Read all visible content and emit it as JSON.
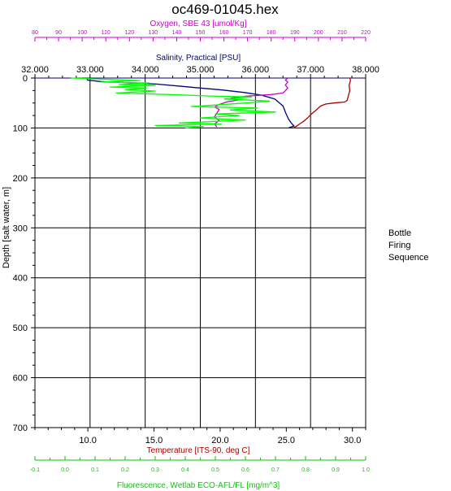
{
  "chart_data": {
    "type": "line",
    "title": "oc469-01045.hex",
    "ylabel": "Depth [salt water, m]",
    "ylim": [
      700,
      0
    ],
    "y_ticks": [
      "0",
      "100",
      "200",
      "300",
      "400",
      "500",
      "600",
      "700"
    ],
    "grid": true,
    "legend_title_lines": [
      "Bottle",
      "Firing",
      "Sequence"
    ],
    "axes": {
      "oxygen": {
        "label": "Oxygen, SBE 43 [umol/Kg]",
        "color": "#cc00cc",
        "range": [
          80,
          220
        ],
        "ticks": [
          "80",
          "90",
          "100",
          "110",
          "120",
          "130",
          "140",
          "150",
          "160",
          "170",
          "180",
          "190",
          "200",
          "210",
          "220"
        ]
      },
      "salinity": {
        "label": "Salinity, Practical [PSU]",
        "color": "#000080",
        "range": [
          32,
          38
        ],
        "ticks": [
          "32.000",
          "33.000",
          "34.000",
          "35.000",
          "36.000",
          "37.000",
          "38.000"
        ]
      },
      "temperature": {
        "label": "Temperature [ITS-90, deg C]",
        "color": "#aa0000",
        "range": [
          6,
          31
        ],
        "ticks": [
          "10.0",
          "15.0",
          "20.0",
          "25.0",
          "30.0"
        ],
        "tick_values": [
          10,
          15,
          20,
          25,
          30
        ]
      },
      "fluorescence": {
        "label": "Fluorescence, Wetlab ECO-AFL/FL [mg/m^3]",
        "color": "#00cc00",
        "range": [
          -0.1,
          1.0
        ],
        "ticks": [
          "-0.1",
          "0.0",
          "0.1",
          "0.2",
          "0.3",
          "0.4",
          "0.5",
          "0.6",
          "0.7",
          "0.8",
          "0.9",
          "1.0"
        ]
      }
    },
    "series": [
      {
        "name": "Temperature",
        "axis": "temperature",
        "color": "#aa0000",
        "points": [
          [
            29.8,
            0
          ],
          [
            29.85,
            5
          ],
          [
            29.75,
            15
          ],
          [
            29.8,
            25
          ],
          [
            29.7,
            35
          ],
          [
            29.6,
            45
          ],
          [
            29.4,
            48
          ],
          [
            28.6,
            50
          ],
          [
            28.0,
            52
          ],
          [
            27.6,
            56
          ],
          [
            27.3,
            63
          ],
          [
            26.9,
            72
          ],
          [
            26.6,
            80
          ],
          [
            26.3,
            87
          ],
          [
            26.0,
            92
          ],
          [
            25.8,
            96
          ],
          [
            25.6,
            99
          ],
          [
            25.5,
            100
          ]
        ]
      },
      {
        "name": "Salinity",
        "axis": "salinity",
        "color": "#000080",
        "points": [
          [
            32.95,
            0
          ],
          [
            32.95,
            4
          ],
          [
            33.2,
            7
          ],
          [
            33.6,
            9
          ],
          [
            34.2,
            12
          ],
          [
            34.6,
            16
          ],
          [
            35.0,
            20
          ],
          [
            35.4,
            24
          ],
          [
            35.8,
            29
          ],
          [
            36.1,
            34
          ],
          [
            36.35,
            42
          ],
          [
            36.5,
            56
          ],
          [
            36.55,
            70
          ],
          [
            36.6,
            82
          ],
          [
            36.65,
            90
          ],
          [
            36.7,
            96
          ],
          [
            36.6,
            100
          ]
        ]
      },
      {
        "name": "Oxygen",
        "axis": "oxygen",
        "color": "#cc00cc",
        "points": [
          [
            187,
            0
          ],
          [
            186,
            4
          ],
          [
            187,
            8
          ],
          [
            186,
            14
          ],
          [
            187,
            20
          ],
          [
            186,
            25
          ],
          [
            185,
            30
          ],
          [
            180,
            33
          ],
          [
            170,
            36
          ],
          [
            163,
            40
          ],
          [
            166,
            44
          ],
          [
            161,
            48
          ],
          [
            158,
            53
          ],
          [
            156,
            58
          ],
          [
            158,
            63
          ],
          [
            157,
            70
          ],
          [
            156,
            78
          ],
          [
            158,
            85
          ],
          [
            156,
            92
          ],
          [
            157,
            98
          ]
        ]
      },
      {
        "name": "Fluorescence",
        "axis": "fluorescence",
        "color": "#00ff00",
        "points": [
          [
            0.02,
            0
          ],
          [
            0.15,
            3
          ],
          [
            0.25,
            5
          ],
          [
            0.12,
            8
          ],
          [
            0.28,
            10
          ],
          [
            0.18,
            13
          ],
          [
            0.3,
            15
          ],
          [
            0.15,
            18
          ],
          [
            0.27,
            20
          ],
          [
            0.2,
            23
          ],
          [
            0.3,
            26
          ],
          [
            0.17,
            30
          ],
          [
            0.35,
            33
          ],
          [
            0.48,
            36
          ],
          [
            0.62,
            38
          ],
          [
            0.53,
            42
          ],
          [
            0.68,
            46
          ],
          [
            0.6,
            50
          ],
          [
            0.5,
            54
          ],
          [
            0.42,
            57
          ],
          [
            0.64,
            60
          ],
          [
            0.55,
            64
          ],
          [
            0.7,
            68
          ],
          [
            0.5,
            72
          ],
          [
            0.58,
            75
          ],
          [
            0.45,
            80
          ],
          [
            0.6,
            84
          ],
          [
            0.5,
            87
          ],
          [
            0.38,
            90
          ],
          [
            0.52,
            92
          ],
          [
            0.3,
            95
          ],
          [
            0.46,
            97
          ],
          [
            0.4,
            100
          ]
        ]
      }
    ]
  }
}
